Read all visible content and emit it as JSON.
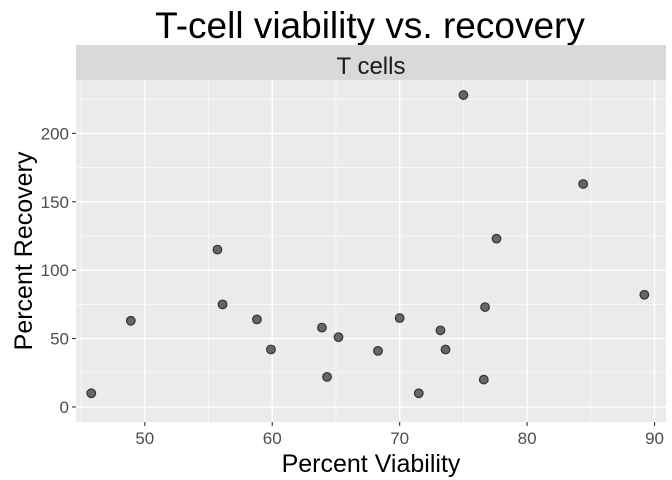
{
  "chart_data": {
    "type": "scatter",
    "title": "T-cell viability vs. recovery",
    "facet_label": "T cells",
    "xlabel": "Percent Viability",
    "ylabel": "Percent Recovery",
    "xlim": [
      44.6,
      90.9
    ],
    "ylim": [
      -11,
      239
    ],
    "x_ticks": [
      50,
      60,
      70,
      80,
      90
    ],
    "y_ticks": [
      0,
      50,
      100,
      150,
      200
    ],
    "x_tick_labels": [
      "50",
      "60",
      "70",
      "80",
      "90"
    ],
    "y_tick_labels": [
      "0",
      "50",
      "100",
      "150",
      "200"
    ],
    "grid": true,
    "points": [
      {
        "x": 45.8,
        "y": 10
      },
      {
        "x": 48.9,
        "y": 63
      },
      {
        "x": 55.7,
        "y": 115
      },
      {
        "x": 56.1,
        "y": 75
      },
      {
        "x": 58.8,
        "y": 64
      },
      {
        "x": 59.9,
        "y": 42
      },
      {
        "x": 63.9,
        "y": 58
      },
      {
        "x": 64.3,
        "y": 22
      },
      {
        "x": 65.2,
        "y": 51
      },
      {
        "x": 68.3,
        "y": 41
      },
      {
        "x": 70.0,
        "y": 65
      },
      {
        "x": 71.5,
        "y": 10
      },
      {
        "x": 73.2,
        "y": 56
      },
      {
        "x": 73.6,
        "y": 42
      },
      {
        "x": 75.0,
        "y": 228
      },
      {
        "x": 76.6,
        "y": 20
      },
      {
        "x": 76.7,
        "y": 73
      },
      {
        "x": 77.6,
        "y": 123
      },
      {
        "x": 84.4,
        "y": 163
      },
      {
        "x": 89.2,
        "y": 82
      }
    ]
  },
  "colors": {
    "panel_background": "#ebebeb",
    "strip_background": "#d9d9d9",
    "grid_major": "#ffffff",
    "point_fill": "#666666",
    "point_stroke": "#333333",
    "text": "#1a1a1a",
    "tick_text": "#4d4d4d"
  }
}
